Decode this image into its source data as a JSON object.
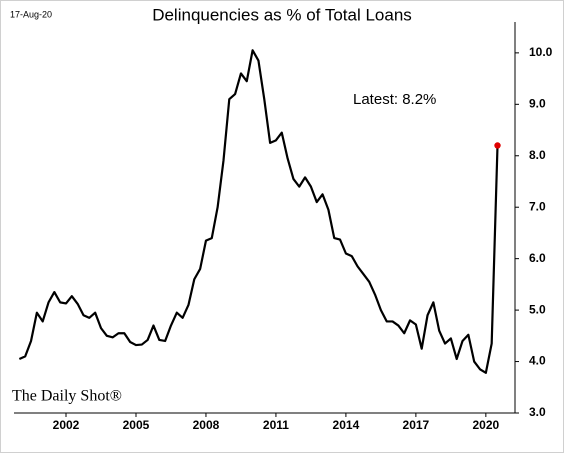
{
  "chart_data": {
    "type": "line",
    "title": "Delinquencies as % of Total Loans",
    "date_label": "17-Aug-20",
    "source": "The Daily Shot®",
    "annotation": "Latest:  8.2%",
    "x": [
      2000,
      2000.25,
      2000.5,
      2000.75,
      2001,
      2001.25,
      2001.5,
      2001.75,
      2002,
      2002.25,
      2002.5,
      2002.75,
      2003,
      2003.25,
      2003.5,
      2003.75,
      2004,
      2004.25,
      2004.5,
      2004.75,
      2005,
      2005.25,
      2005.5,
      2005.75,
      2006,
      2006.25,
      2006.5,
      2006.75,
      2007,
      2007.25,
      2007.5,
      2007.75,
      2008,
      2008.25,
      2008.5,
      2008.75,
      2009,
      2009.25,
      2009.5,
      2009.75,
      2010,
      2010.25,
      2010.5,
      2010.75,
      2011,
      2011.25,
      2011.5,
      2011.75,
      2012,
      2012.25,
      2012.5,
      2012.75,
      2013,
      2013.25,
      2013.5,
      2013.75,
      2014,
      2014.25,
      2014.5,
      2014.75,
      2015,
      2015.25,
      2015.5,
      2015.75,
      2016,
      2016.25,
      2016.5,
      2016.75,
      2017,
      2017.25,
      2017.5,
      2017.75,
      2018,
      2018.25,
      2018.5,
      2018.75,
      2019,
      2019.25,
      2019.5,
      2019.75,
      2020,
      2020.25,
      2020.5
    ],
    "values": [
      4.05,
      4.1,
      4.4,
      4.95,
      4.78,
      5.15,
      5.35,
      5.15,
      5.13,
      5.27,
      5.12,
      4.9,
      4.85,
      4.95,
      4.65,
      4.5,
      4.47,
      4.55,
      4.55,
      4.38,
      4.32,
      4.33,
      4.42,
      4.7,
      4.42,
      4.4,
      4.7,
      4.95,
      4.85,
      5.1,
      5.6,
      5.8,
      6.35,
      6.4,
      7.0,
      7.9,
      9.1,
      9.2,
      9.6,
      9.45,
      10.05,
      9.85,
      9.1,
      8.25,
      8.3,
      8.45,
      7.95,
      7.55,
      7.4,
      7.58,
      7.4,
      7.1,
      7.25,
      6.95,
      6.4,
      6.37,
      6.1,
      6.05,
      5.85,
      5.7,
      5.55,
      5.3,
      5.0,
      4.78,
      4.78,
      4.7,
      4.55,
      4.8,
      4.72,
      4.25,
      4.9,
      5.15,
      4.6,
      4.35,
      4.45,
      4.05,
      4.4,
      4.52,
      4.0,
      3.85,
      3.78,
      4.35,
      8.2
    ],
    "color": "#000000",
    "highlight_color": "#e00000",
    "xlim": [
      1999.77,
      2021.25
    ],
    "xticks": [
      2002,
      2005,
      2008,
      2011,
      2014,
      2017,
      2020
    ],
    "ylim": [
      3,
      10.6
    ],
    "yticks": [
      {
        "value": 3,
        "label": "3.0"
      },
      {
        "value": 4,
        "label": "4.0"
      },
      {
        "value": 5,
        "label": "5.0"
      },
      {
        "value": 6,
        "label": "6.0"
      },
      {
        "value": 7,
        "label": "7.0"
      },
      {
        "value": 8,
        "label": "8.0"
      },
      {
        "value": 9,
        "label": "9.0"
      },
      {
        "value": 10,
        "label": "10.0"
      }
    ]
  }
}
